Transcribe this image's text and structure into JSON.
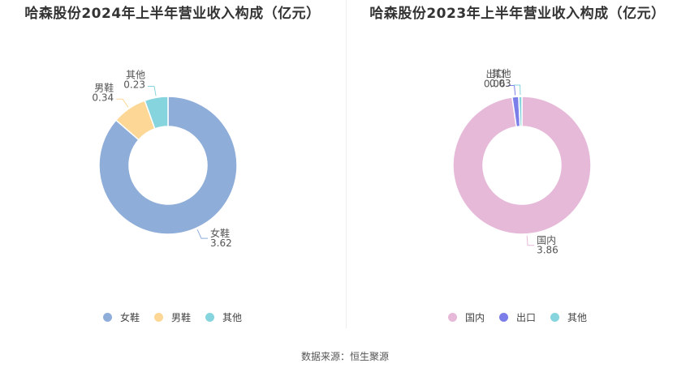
{
  "source_text": "数据来源：恒生聚源",
  "chart_data": [
    {
      "type": "pie",
      "title": "哈森股份2024年上半年营业收入构成（亿元）",
      "donut": true,
      "categories": [
        "女鞋",
        "男鞋",
        "其他"
      ],
      "values": [
        3.62,
        0.34,
        0.23
      ],
      "value_labels": [
        "3.62",
        "0.34",
        "0.23"
      ],
      "colors": [
        "#8fadd9",
        "#fdd795",
        "#86d4dd"
      ],
      "legend_position": "bottom"
    },
    {
      "type": "pie",
      "title": "哈森股份2023年上半年营业收入构成（亿元）",
      "donut": true,
      "categories": [
        "国内",
        "出口",
        "其他"
      ],
      "values": [
        3.86,
        0.06,
        0.03
      ],
      "value_labels": [
        "3.86",
        "0.06",
        "0.03"
      ],
      "colors": [
        "#e6b9d9",
        "#7b7de8",
        "#86d4dd"
      ],
      "legend_position": "bottom"
    }
  ]
}
